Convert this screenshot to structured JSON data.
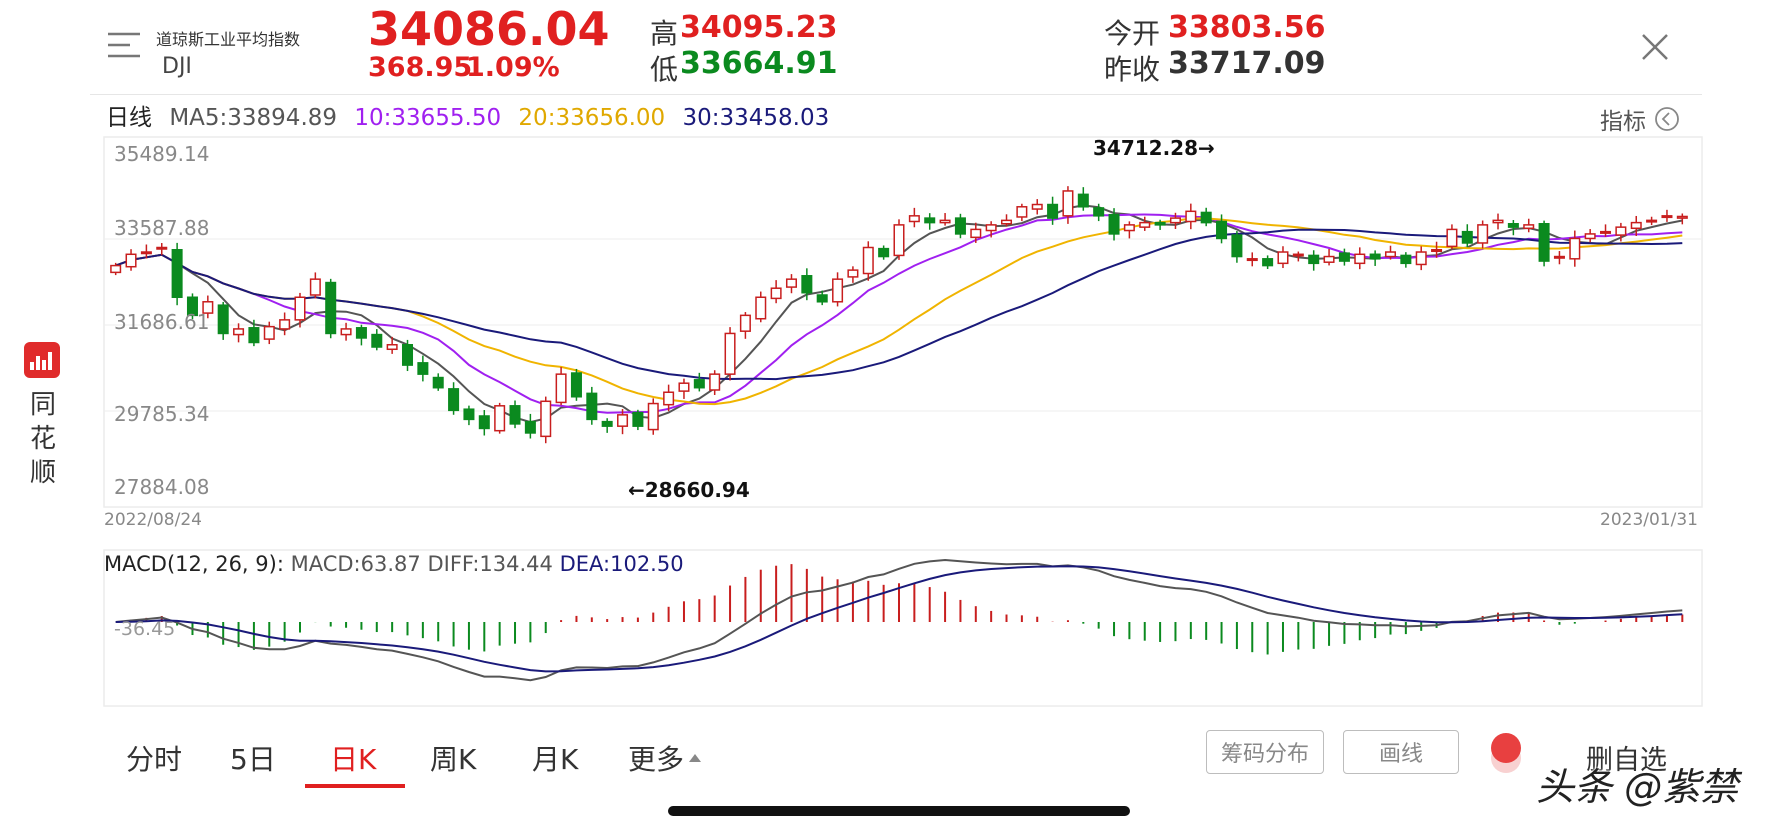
{
  "header": {
    "index_name": "道琼斯工业平均指数",
    "index_code": "DJI",
    "price": "34086.04",
    "change": "368.95",
    "change_pct": "1.09%",
    "high_label": "高",
    "high": "34095.23",
    "low_label": "低",
    "low": "33664.91",
    "open_label": "今开",
    "open": "33803.56",
    "prev_close_label": "昨收",
    "prev_close": "33717.09"
  },
  "colors": {
    "up": "#c81e1e",
    "down": "#0b8a1f",
    "ma5": "#555555",
    "ma10": "#a020f0",
    "ma20": "#f0b400",
    "ma30": "#1a1a7a"
  },
  "ma_legend": {
    "period": "日线",
    "ma5": "MA5:33894.89",
    "ma10": "10:33655.50",
    "ma20": "20:33656.00",
    "ma30": "30:33458.03"
  },
  "indicator_button": "指标",
  "side_brand": {
    "chars": [
      "同",
      "花",
      "顺"
    ]
  },
  "chart_data": {
    "type": "candlestick",
    "y_ticks": [
      "35489.14",
      "33587.88",
      "31686.61",
      "29785.34",
      "27884.08"
    ],
    "ylim": [
      27884.08,
      35489.14
    ],
    "x_start": "2022/08/24",
    "x_end": "2023/01/31",
    "max_annotation": "34712.28→",
    "min_annotation": "←28660.94",
    "closes": [
      33000,
      33250,
      33300,
      33400,
      32300,
      31900,
      32200,
      31500,
      31600,
      31300,
      31650,
      31800,
      32300,
      32700,
      31500,
      31600,
      31400,
      31200,
      31250,
      30800,
      30600,
      30300,
      29800,
      29600,
      29400,
      29900,
      29500,
      29300,
      30000,
      30600,
      30100,
      29600,
      29450,
      29700,
      29450,
      29950,
      30200,
      30400,
      30300,
      30600,
      31500,
      31900,
      32300,
      32500,
      32700,
      32400,
      32200,
      32700,
      32900,
      33400,
      33200,
      33900,
      34100,
      33950,
      34000,
      33700,
      33800,
      33900,
      34000,
      34300,
      34350,
      34050,
      34650,
      34300,
      34100,
      33700,
      33900,
      33950,
      33900,
      34050,
      34200,
      33950,
      33600,
      33200,
      33150,
      33000,
      33300,
      33250,
      33050,
      33200,
      33100,
      33250,
      33150,
      33300,
      33050,
      33300,
      33350,
      33800,
      33500,
      33900,
      34000,
      33850,
      33900,
      33100,
      33200,
      33600,
      33700,
      33750,
      33850,
      33950,
      34000,
      34100,
      34086
    ],
    "macd_legend": {
      "name": "MACD(12, 26, 9):",
      "macd": "MACD:63.87",
      "diff": "DIFF:134.44",
      "dea": "DEA:102.50"
    },
    "macd_axis_label": "-36.45"
  },
  "tabs": [
    "分时",
    "5日",
    "日K",
    "周K",
    "月K",
    "更多"
  ],
  "active_tab": 2,
  "buttons": {
    "chips": "筹码分布",
    "draw": "画线",
    "remove_watch": "删自选"
  },
  "watermark": "头条 @紫禁"
}
